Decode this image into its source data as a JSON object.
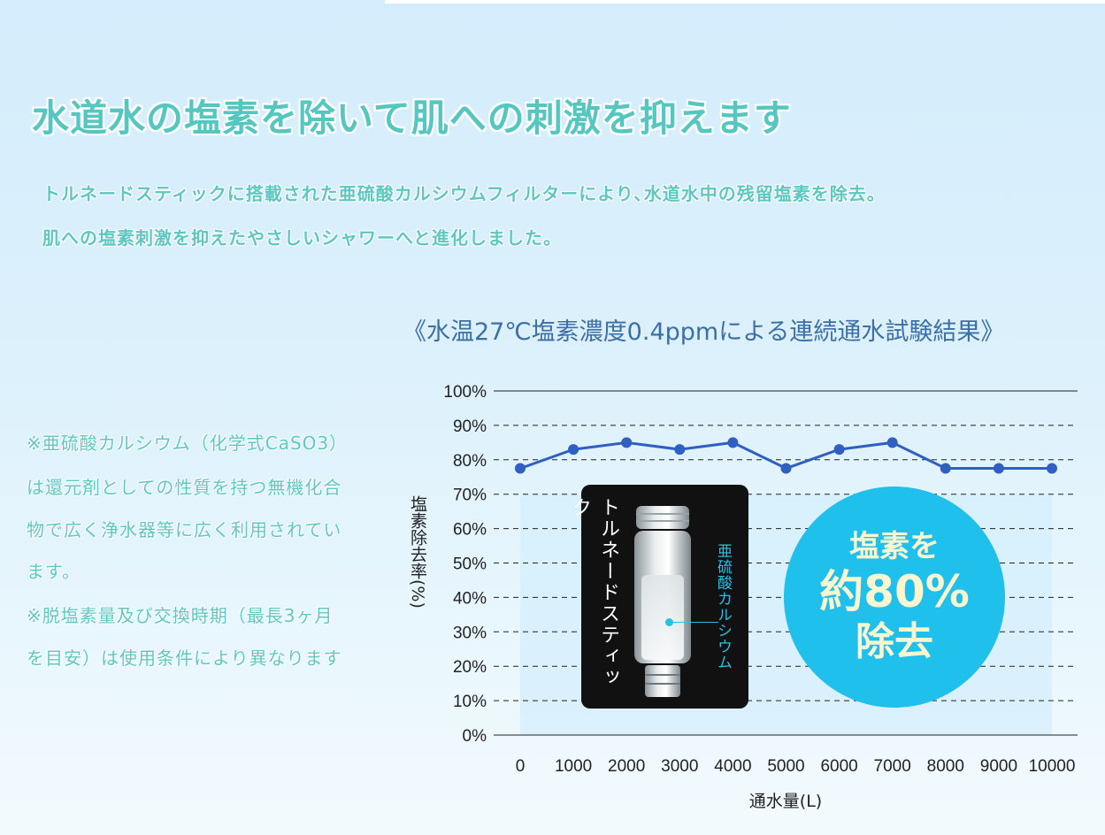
{
  "headline": "水道水の塩素を除いて肌への刺激を抑えます",
  "lead": [
    "トルネードスティックに搭載された亜硫酸カルシウムフィルターにより､水道水中の残留塩素を除去。",
    "肌への塩素刺激を抑えたやさしいシャワーへと進化しました。"
  ],
  "notes": [
    "※亜硫酸カルシウム（化学式CaSO3）",
    "は還元剤としての性質を持つ無機化合",
    "物で広く浄水器等に広く利用されてい",
    "ます。",
    "※脱塩素量及び交換時期（最長3ヶ月",
    "を目安）は使用条件により異なります"
  ],
  "product": {
    "name": "トルネードスティック",
    "filter_label": "亜硫酸カルシウム"
  },
  "badge": {
    "line1": "塩素を",
    "line2": "約80%",
    "line3": "除去"
  },
  "colors": {
    "accent": "#55c7c0",
    "line": "#2f5fc2",
    "badge": "#1fc0eb",
    "title": "#3b6fa5"
  },
  "chart_data": {
    "type": "line",
    "title": "《水温27℃塩素濃度0.4ppmによる連続通水試験結果》",
    "xlabel": "通水量(L)",
    "ylabel": "塩素除去率(%)",
    "x": [
      0,
      1000,
      2000,
      3000,
      4000,
      5000,
      6000,
      7000,
      8000,
      9000,
      10000
    ],
    "y_ticks": [
      "0%",
      "10%",
      "20%",
      "30%",
      "40%",
      "50%",
      "60%",
      "70%",
      "80%",
      "90%",
      "100%"
    ],
    "ylim": [
      0,
      100
    ],
    "grid": true,
    "series": [
      {
        "values": [
          77.5,
          83,
          85,
          83,
          85,
          77.5,
          83,
          85,
          77.5,
          77.5,
          77.5
        ]
      }
    ]
  }
}
